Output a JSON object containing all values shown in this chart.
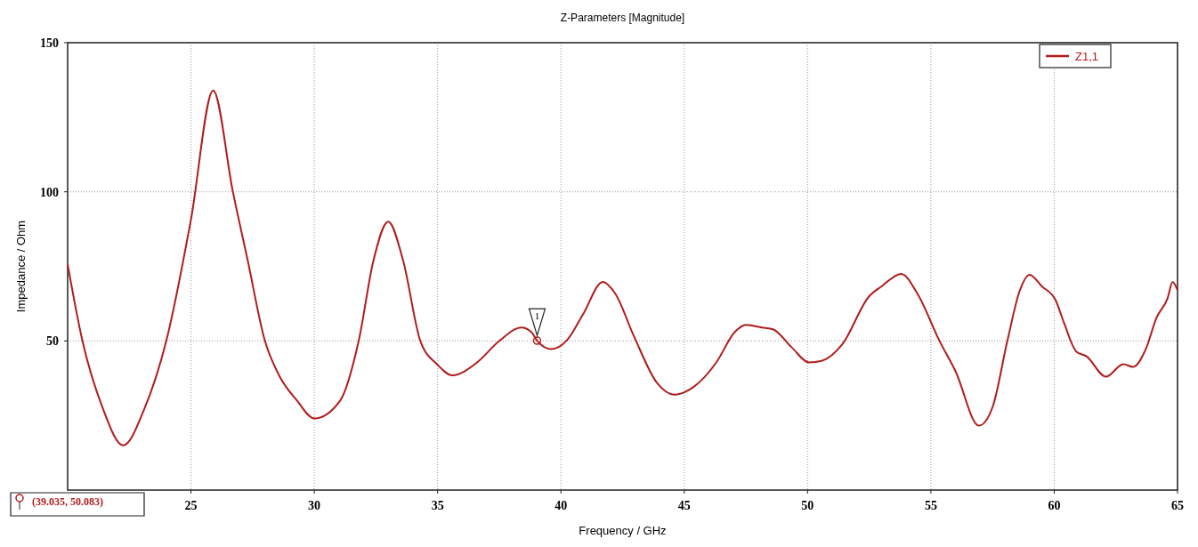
{
  "chart_data": {
    "type": "line",
    "title": "Z-Parameters [Magnitude]",
    "xlabel": "Frequency / GHz",
    "ylabel": "Impedance / Ohm",
    "xlim": [
      20,
      65
    ],
    "ylim": [
      0,
      150
    ],
    "xticks": [
      25,
      30,
      35,
      40,
      45,
      50,
      55,
      60,
      65
    ],
    "yticks": [
      50,
      100,
      150
    ],
    "grid": true,
    "legend": "top right",
    "series": [
      {
        "name": "Z1,1",
        "color": "#b01c1c",
        "x": [
          20,
          20.6,
          21.4,
          22.25,
          23.1,
          24.0,
          25.0,
          25.9,
          26.7,
          27.3,
          28.0,
          28.6,
          29.3,
          30.0,
          31.05,
          31.8,
          32.4,
          33.0,
          33.6,
          34.3,
          35.0,
          35.6,
          36.6,
          37.5,
          38.4,
          38.8,
          39.035,
          39.6,
          40.25,
          40.9,
          41.7,
          42.2,
          42.95,
          43.9,
          44.6,
          45.35,
          46.3,
          47.05,
          47.5,
          48.15,
          48.6,
          49.35,
          50.07,
          50.6,
          51.4,
          52.5,
          53.0,
          53.8,
          54.45,
          55.35,
          56.0,
          56.95,
          57.5,
          58.1,
          58.6,
          59.0,
          59.5,
          60.05,
          60.4,
          60.9,
          61.3,
          62.1,
          62.8,
          63.2,
          63.7,
          64.15,
          64.6,
          64.8,
          65
        ],
        "values": [
          75.7,
          50,
          28,
          15,
          27,
          50,
          90.7,
          134,
          100,
          77,
          50,
          38,
          30,
          24,
          30,
          50,
          77,
          90,
          77,
          50,
          42,
          38.5,
          42.8,
          50,
          54.5,
          53,
          50.083,
          47.3,
          50.3,
          59,
          69.8,
          65.9,
          51.8,
          35.9,
          32,
          34.4,
          42.8,
          53,
          55.4,
          54.5,
          53.9,
          47.9,
          42.8,
          43.4,
          48.8,
          65,
          68.3,
          72.5,
          65.9,
          50,
          39.8,
          21.6,
          27.8,
          50,
          66.8,
          72.2,
          68.3,
          63.8,
          56,
          46.4,
          44.9,
          38,
          42.2,
          41.3,
          47,
          57.8,
          64.4,
          69.8,
          67
        ]
      }
    ],
    "annotations": [
      {
        "text": "1",
        "x": 39.035,
        "y": 50.083
      },
      "(39.035, 50.083)"
    ]
  }
}
